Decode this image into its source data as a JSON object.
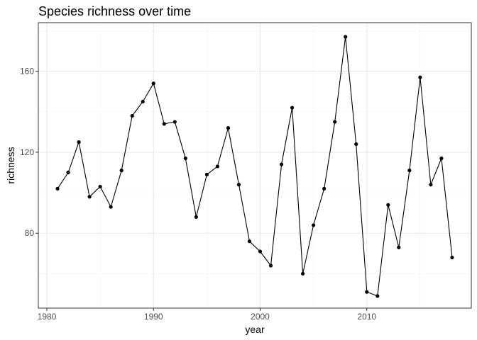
{
  "chart_data": {
    "type": "line",
    "title": "Species richness over time",
    "xlabel": "year",
    "ylabel": "richness",
    "xlim": [
      1979.2,
      2019.8
    ],
    "ylim": [
      43,
      184
    ],
    "x_ticks": [
      1980,
      1990,
      2000,
      2010
    ],
    "y_ticks": [
      80,
      120,
      160
    ],
    "grid": true,
    "markers": true,
    "series": [
      {
        "x": [
          1981,
          1982,
          1983,
          1984,
          1985,
          1986,
          1987,
          1988,
          1989,
          1990,
          1991,
          1992,
          1993,
          1994,
          1995,
          1996,
          1997,
          1998,
          1999,
          2000,
          2001,
          2002,
          2003,
          2004,
          2005,
          2006,
          2007,
          2008,
          2009,
          2010,
          2011,
          2012,
          2013,
          2014,
          2015,
          2016,
          2017,
          2018
        ],
        "values": [
          102,
          110,
          125,
          98,
          103,
          93,
          111,
          138,
          145,
          154,
          134,
          135,
          117,
          88,
          109,
          113,
          132,
          104,
          76,
          71,
          64,
          114,
          142,
          60,
          84,
          102,
          135,
          177,
          124,
          51,
          49,
          94,
          73,
          111,
          157,
          104,
          117,
          68
        ]
      }
    ]
  }
}
